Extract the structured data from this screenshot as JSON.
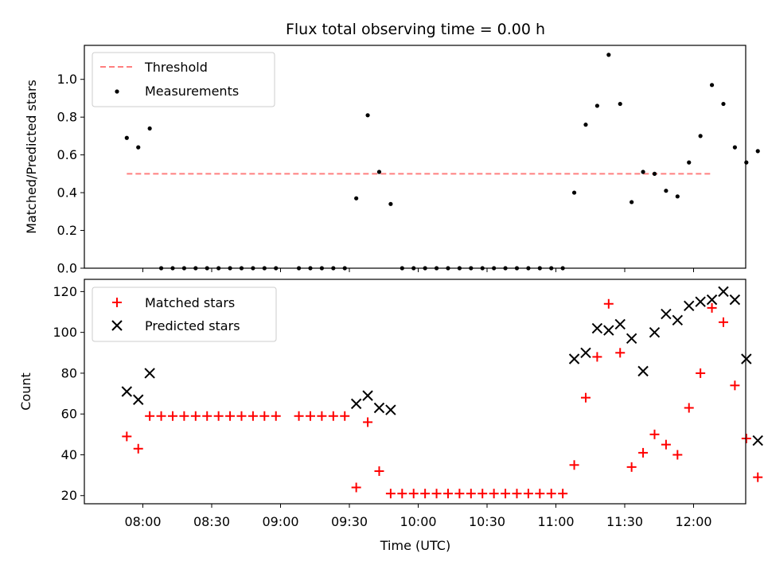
{
  "chart_data": {
    "type": "scatter",
    "title": "Flux total observing time = 0.00 h",
    "xlabel": "Time (UTC)",
    "x_ticks": [
      "08:00",
      "08:30",
      "09:00",
      "09:30",
      "10:00",
      "10:30",
      "11:00",
      "11:30",
      "12:00"
    ],
    "panels": [
      {
        "ylabel": "Matched/Predicted stars",
        "ylim": [
          0,
          1.18
        ],
        "y_ticks": [
          0.0,
          0.2,
          0.4,
          0.6,
          0.8,
          1.0
        ],
        "threshold": {
          "name": "Threshold",
          "value": 0.5,
          "x_start": "07:53",
          "x_end": "12:08",
          "color": "#ff7f7f"
        },
        "series": [
          {
            "name": "Measurements",
            "color": "#000000",
            "marker": "dot",
            "points": [
              [
                "07:53",
                0.69
              ],
              [
                "07:58",
                0.64
              ],
              [
                "08:03",
                0.74
              ],
              [
                "08:08",
                0
              ],
              [
                "08:13",
                0
              ],
              [
                "08:18",
                0
              ],
              [
                "08:23",
                0
              ],
              [
                "08:28",
                0
              ],
              [
                "08:33",
                0
              ],
              [
                "08:38",
                0
              ],
              [
                "08:43",
                0
              ],
              [
                "08:48",
                0
              ],
              [
                "08:53",
                0
              ],
              [
                "08:58",
                0
              ],
              [
                "09:08",
                0
              ],
              [
                "09:13",
                0
              ],
              [
                "09:18",
                0
              ],
              [
                "09:23",
                0
              ],
              [
                "09:28",
                0
              ],
              [
                "09:33",
                0.37
              ],
              [
                "09:38",
                0.81
              ],
              [
                "09:43",
                0.51
              ],
              [
                "09:48",
                0.34
              ],
              [
                "09:53",
                0
              ],
              [
                "09:58",
                0
              ],
              [
                "10:03",
                0
              ],
              [
                "10:08",
                0
              ],
              [
                "10:13",
                0
              ],
              [
                "10:18",
                0
              ],
              [
                "10:23",
                0
              ],
              [
                "10:28",
                0
              ],
              [
                "10:33",
                0
              ],
              [
                "10:38",
                0
              ],
              [
                "10:43",
                0
              ],
              [
                "10:48",
                0
              ],
              [
                "10:53",
                0
              ],
              [
                "10:58",
                0
              ],
              [
                "11:03",
                0
              ],
              [
                "11:08",
                0.4
              ],
              [
                "11:13",
                0.76
              ],
              [
                "11:18",
                0.86
              ],
              [
                "11:23",
                1.13
              ],
              [
                "11:28",
                0.87
              ],
              [
                "11:33",
                0.35
              ],
              [
                "11:38",
                0.51
              ],
              [
                "11:43",
                0.5
              ],
              [
                "11:48",
                0.41
              ],
              [
                "11:53",
                0.38
              ],
              [
                "11:58",
                0.56
              ],
              [
                "12:03",
                0.7
              ],
              [
                "12:08",
                0.97
              ],
              [
                "12:13",
                0.87
              ],
              [
                "12:18",
                0.64
              ],
              [
                "12:23",
                0.56
              ],
              [
                "12:28",
                0.62
              ]
            ]
          }
        ],
        "legend_position": "top-left"
      },
      {
        "ylabel": "Count",
        "ylim": [
          16,
          126
        ],
        "y_ticks": [
          20,
          40,
          60,
          80,
          100,
          120
        ],
        "series": [
          {
            "name": "Matched stars",
            "color": "#ff0000",
            "marker": "plus",
            "points": [
              [
                "07:53",
                49
              ],
              [
                "07:58",
                43
              ],
              [
                "08:03",
                59
              ],
              [
                "08:08",
                59
              ],
              [
                "08:13",
                59
              ],
              [
                "08:18",
                59
              ],
              [
                "08:23",
                59
              ],
              [
                "08:28",
                59
              ],
              [
                "08:33",
                59
              ],
              [
                "08:38",
                59
              ],
              [
                "08:43",
                59
              ],
              [
                "08:48",
                59
              ],
              [
                "08:53",
                59
              ],
              [
                "08:58",
                59
              ],
              [
                "09:08",
                59
              ],
              [
                "09:13",
                59
              ],
              [
                "09:18",
                59
              ],
              [
                "09:23",
                59
              ],
              [
                "09:28",
                59
              ],
              [
                "09:33",
                24
              ],
              [
                "09:38",
                56
              ],
              [
                "09:43",
                32
              ],
              [
                "09:48",
                21
              ],
              [
                "09:53",
                21
              ],
              [
                "09:58",
                21
              ],
              [
                "10:03",
                21
              ],
              [
                "10:08",
                21
              ],
              [
                "10:13",
                21
              ],
              [
                "10:18",
                21
              ],
              [
                "10:23",
                21
              ],
              [
                "10:28",
                21
              ],
              [
                "10:33",
                21
              ],
              [
                "10:38",
                21
              ],
              [
                "10:43",
                21
              ],
              [
                "10:48",
                21
              ],
              [
                "10:53",
                21
              ],
              [
                "10:58",
                21
              ],
              [
                "11:03",
                21
              ],
              [
                "11:08",
                35
              ],
              [
                "11:13",
                68
              ],
              [
                "11:18",
                88
              ],
              [
                "11:23",
                114
              ],
              [
                "11:28",
                90
              ],
              [
                "11:33",
                34
              ],
              [
                "11:38",
                41
              ],
              [
                "11:43",
                50
              ],
              [
                "11:48",
                45
              ],
              [
                "11:53",
                40
              ],
              [
                "11:58",
                63
              ],
              [
                "12:03",
                80
              ],
              [
                "12:08",
                112
              ],
              [
                "12:13",
                105
              ],
              [
                "12:18",
                74
              ],
              [
                "12:23",
                48
              ],
              [
                "12:28",
                29
              ]
            ]
          },
          {
            "name": "Predicted stars",
            "color": "#000000",
            "marker": "x",
            "points": [
              [
                "07:53",
                71
              ],
              [
                "07:58",
                67
              ],
              [
                "08:03",
                80
              ],
              [
                "09:33",
                65
              ],
              [
                "09:38",
                69
              ],
              [
                "09:43",
                63
              ],
              [
                "09:48",
                62
              ],
              [
                "11:08",
                87
              ],
              [
                "11:13",
                90
              ],
              [
                "11:18",
                102
              ],
              [
                "11:23",
                101
              ],
              [
                "11:28",
                104
              ],
              [
                "11:33",
                97
              ],
              [
                "11:38",
                81
              ],
              [
                "11:43",
                100
              ],
              [
                "11:48",
                109
              ],
              [
                "11:53",
                106
              ],
              [
                "11:58",
                113
              ],
              [
                "12:03",
                115
              ],
              [
                "12:08",
                116
              ],
              [
                "12:13",
                120
              ],
              [
                "12:18",
                116
              ],
              [
                "12:23",
                87
              ],
              [
                "12:28",
                47
              ]
            ]
          }
        ],
        "legend_position": "top-left"
      }
    ]
  }
}
